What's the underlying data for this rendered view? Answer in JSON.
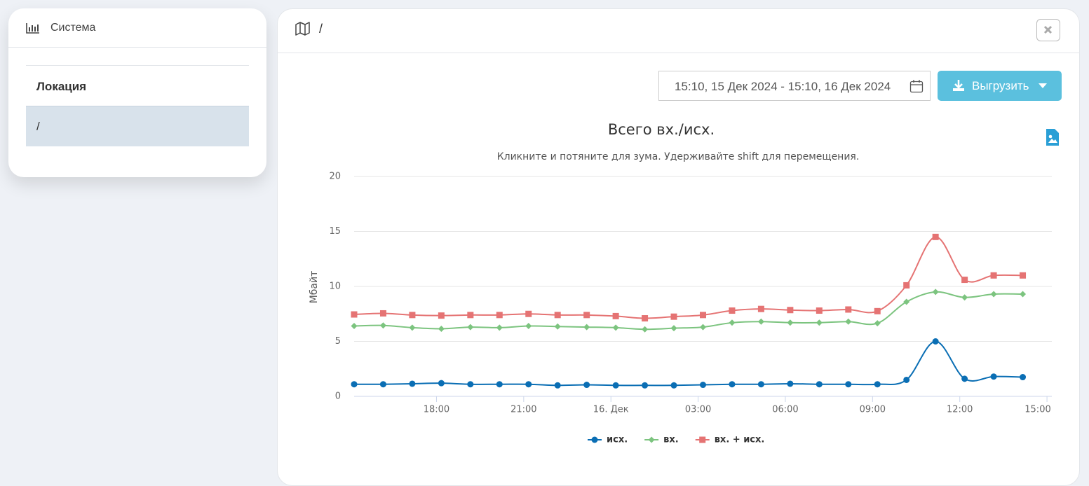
{
  "sidebar": {
    "title": "Система",
    "heading": "Локация",
    "items": [
      "/"
    ]
  },
  "panel": {
    "title": "/",
    "date_range": "15:10, 15 Дек 2024 - 15:10, 16 Дек 2024",
    "export_button": "Выгрузить"
  },
  "chart_data": {
    "type": "line",
    "title": "Всего вх./исх.",
    "subtitle": "Кликните и потяните для зума. Удерживайте shift для перемещения.",
    "y_label": "Мбайт",
    "x": [
      "2024-12-15T15:10",
      "2024-12-15T16:10",
      "2024-12-15T17:10",
      "2024-12-15T18:10",
      "2024-12-15T19:10",
      "2024-12-15T20:10",
      "2024-12-15T21:10",
      "2024-12-15T22:10",
      "2024-12-15T23:10",
      "2024-12-16T00:10",
      "2024-12-16T01:10",
      "2024-12-16T02:10",
      "2024-12-16T03:10",
      "2024-12-16T04:10",
      "2024-12-16T05:10",
      "2024-12-16T06:10",
      "2024-12-16T07:10",
      "2024-12-16T08:10",
      "2024-12-16T09:10",
      "2024-12-16T10:10",
      "2024-12-16T11:10",
      "2024-12-16T12:10",
      "2024-12-16T13:10",
      "2024-12-16T14:10"
    ],
    "series": [
      {
        "name": "исх.",
        "color": "#0a6eb4",
        "marker": "circle",
        "values": [
          1.1,
          1.1,
          1.15,
          1.2,
          1.1,
          1.1,
          1.1,
          1.0,
          1.05,
          1.0,
          1.0,
          1.0,
          1.05,
          1.1,
          1.1,
          1.15,
          1.1,
          1.1,
          1.1,
          1.5,
          5.0,
          1.6,
          1.8,
          1.75
        ]
      },
      {
        "name": "вх.",
        "color": "#7cc47f",
        "marker": "diamond",
        "values": [
          6.4,
          6.45,
          6.25,
          6.15,
          6.3,
          6.25,
          6.4,
          6.35,
          6.3,
          6.25,
          6.1,
          6.2,
          6.3,
          6.7,
          6.8,
          6.7,
          6.7,
          6.8,
          6.65,
          8.6,
          9.5,
          9.0,
          9.3,
          9.3
        ]
      },
      {
        "name": "вх. + исх.",
        "color": "#e57373",
        "marker": "square",
        "values": [
          7.45,
          7.55,
          7.4,
          7.35,
          7.4,
          7.4,
          7.5,
          7.4,
          7.4,
          7.3,
          7.1,
          7.25,
          7.4,
          7.8,
          7.95,
          7.85,
          7.8,
          7.9,
          7.75,
          10.1,
          14.5,
          10.6,
          11.0,
          11.0
        ]
      }
    ],
    "xlim": [
      "2024-12-15T15:10",
      "2024-12-16T15:10"
    ],
    "xticks": [
      {
        "value": "2024-12-15T18:00",
        "label": "18:00"
      },
      {
        "value": "2024-12-15T21:00",
        "label": "21:00"
      },
      {
        "value": "2024-12-16T00:00",
        "label": "16. Дек"
      },
      {
        "value": "2024-12-16T03:00",
        "label": "03:00"
      },
      {
        "value": "2024-12-16T06:00",
        "label": "06:00"
      },
      {
        "value": "2024-12-16T09:00",
        "label": "09:00"
      },
      {
        "value": "2024-12-16T12:00",
        "label": "12:00"
      },
      {
        "value": "2024-12-16T15:00",
        "label": "15:00"
      }
    ],
    "ylim": [
      0,
      20
    ],
    "yticks": [
      0,
      5,
      10,
      15,
      20
    ],
    "grid": true,
    "legend": "bottom"
  }
}
